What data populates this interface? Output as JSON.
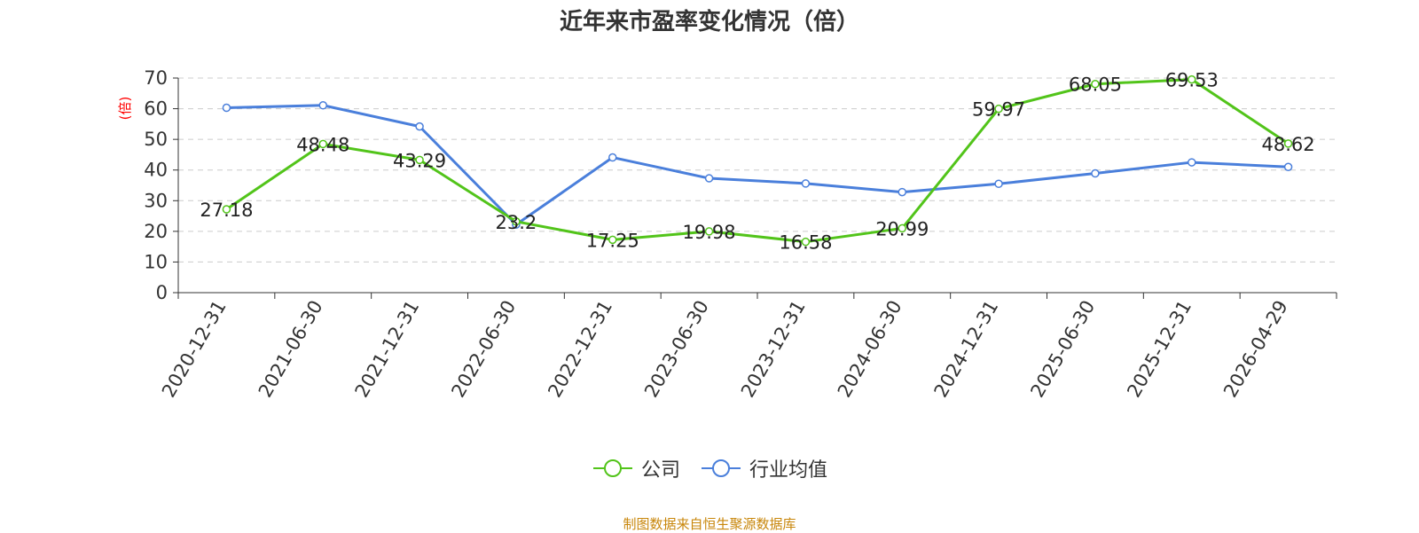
{
  "chart_data": {
    "type": "line",
    "title": "近年来市盈率变化情况（倍）",
    "ylabel": "(倍)",
    "xlabel": "",
    "ylim": [
      0,
      70
    ],
    "yticks": [
      0,
      10,
      20,
      30,
      40,
      50,
      60,
      70
    ],
    "grid": true,
    "legend_position": "bottom",
    "categories": [
      "2020-12-31",
      "2021-06-30",
      "2021-12-31",
      "2022-06-30",
      "2022-12-31",
      "2023-06-30",
      "2023-12-31",
      "2024-06-30",
      "2024-12-31",
      "2025-06-30",
      "2025-12-31",
      "2026-04-29"
    ],
    "series": [
      {
        "name": "公司",
        "color": "#52c41a",
        "values": [
          27.18,
          48.48,
          43.29,
          23.2,
          17.25,
          19.98,
          16.58,
          20.99,
          59.97,
          68.05,
          69.53,
          48.62
        ],
        "labels": [
          "27.18",
          "48.48",
          "43.29",
          "23.2",
          "17.25",
          "19.98",
          "16.58",
          "20.99",
          "59.97",
          "68.05",
          "69.53",
          "48.62"
        ]
      },
      {
        "name": "行业均值",
        "color": "#4a7fdb",
        "values": [
          60.3,
          61.1,
          54.2,
          22.2,
          44.1,
          37.3,
          35.6,
          32.8,
          35.5,
          38.9,
          42.5,
          41.0
        ]
      }
    ],
    "source_note": "制图数据来自恒生聚源数据库"
  }
}
